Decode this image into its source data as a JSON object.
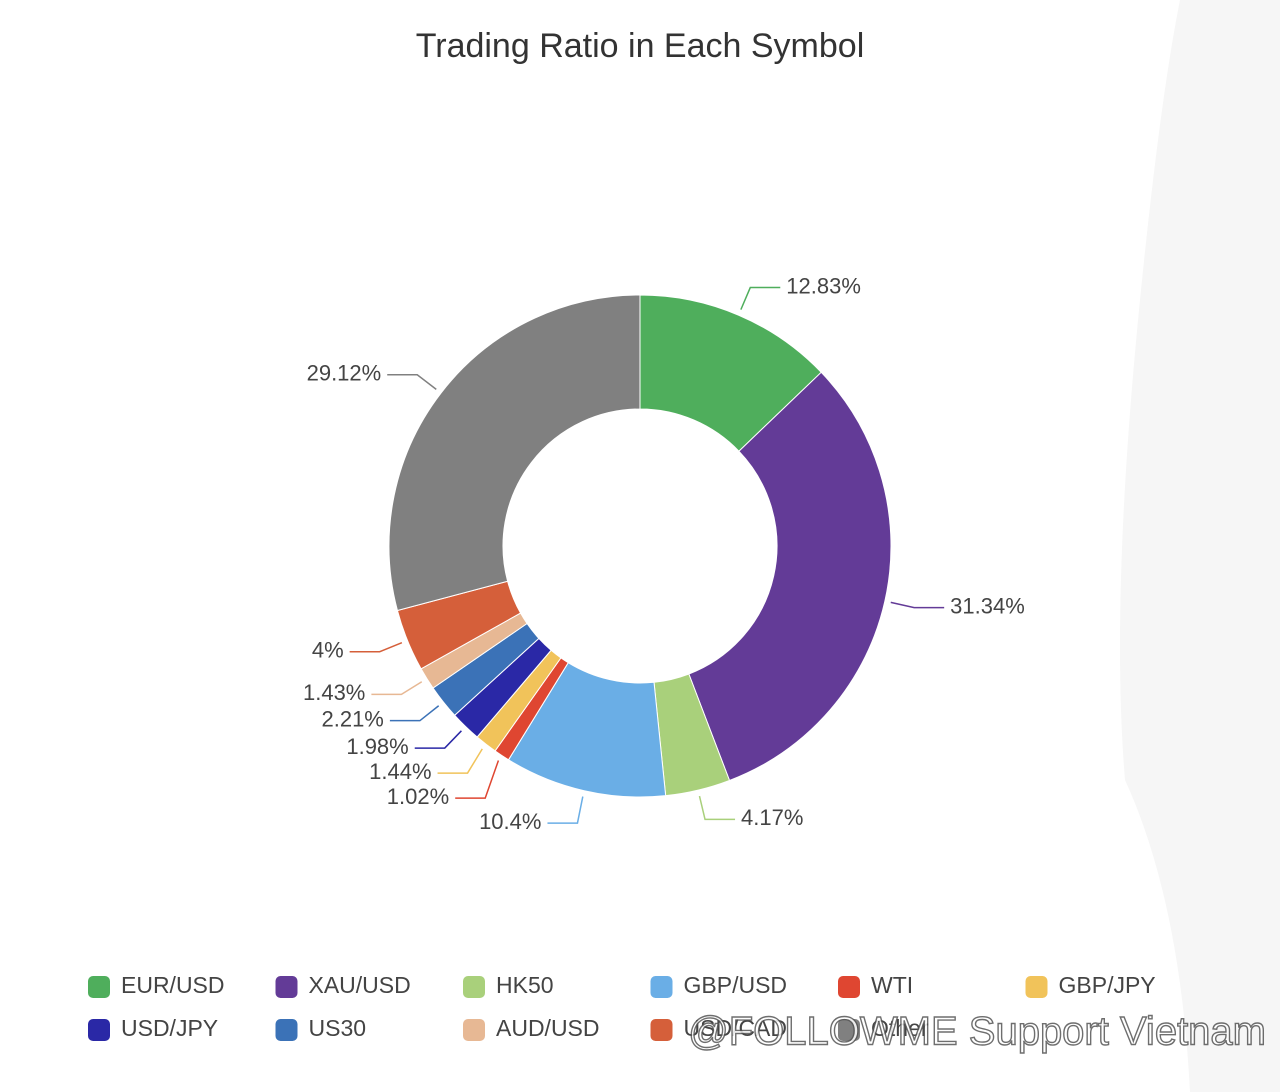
{
  "chart_data": {
    "type": "donut",
    "title": "Trading Ratio in Each Symbol",
    "categories": [
      "EUR/USD",
      "XAU/USD",
      "HK50",
      "GBP/USD",
      "WTI",
      "GBP/JPY",
      "USD/JPY",
      "US30",
      "AUD/USD",
      "USD/CAD",
      "Other"
    ],
    "values": [
      12.83,
      31.34,
      4.17,
      10.4,
      1.02,
      1.44,
      1.98,
      2.21,
      1.43,
      4,
      29.12
    ],
    "value_labels": [
      "12.83%",
      "31.34%",
      "4.17%",
      "10.4%",
      "1.02%",
      "1.44%",
      "1.98%",
      "2.21%",
      "1.43%",
      "4%",
      "29.12%"
    ],
    "colors": [
      "#4fae5c",
      "#633b97",
      "#a9d07b",
      "#6aaee6",
      "#df4631",
      "#f1c35a",
      "#2a28a6",
      "#3b72b7",
      "#e7b894",
      "#d55f3a",
      "#808080"
    ]
  },
  "watermark": "@FOLLOWME Support Vietnam"
}
